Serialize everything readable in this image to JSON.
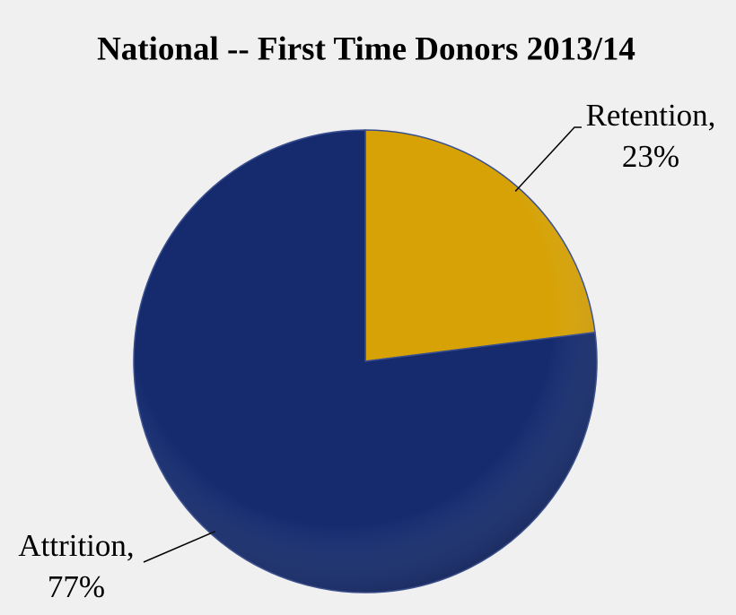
{
  "chart_data": {
    "type": "pie",
    "title": "National -- First Time Donors 2013/14",
    "categories": [
      "Retention,",
      "Attrition,"
    ],
    "values": [
      23,
      77
    ],
    "value_labels": [
      "23%",
      "77%"
    ],
    "colors": [
      "#d6a206",
      "#152b6e"
    ]
  }
}
